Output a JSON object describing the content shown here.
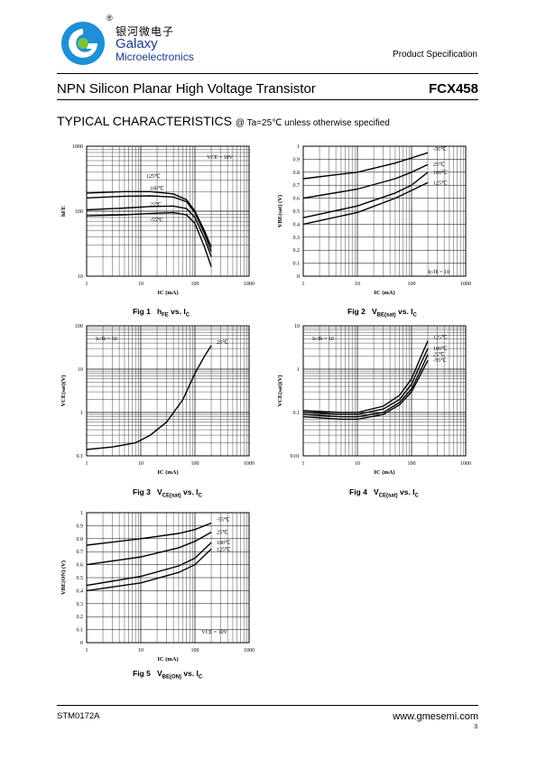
{
  "header": {
    "brand_cn": "银河微电子",
    "brand_reg": "®",
    "brand_en_line1": "Galaxy",
    "brand_en_line2": "Microelectronics",
    "product_spec": "Product Specification",
    "logo_colors": {
      "blue": "#1f8fd6",
      "green": "#7ac143"
    }
  },
  "title": {
    "description": "NPN Silicon Planar High Voltage Transistor",
    "part_number": "FCX458"
  },
  "section": {
    "heading": "TYPICAL CHARACTERISTICS",
    "condition": "@ Ta=25℃ unless otherwise specified"
  },
  "footer": {
    "doc_code": "STM0172A",
    "url": "www.gmesemi.com",
    "page": "3"
  },
  "chart_data": [
    {
      "id": "fig1",
      "type": "line",
      "caption": {
        "fig": "Fig 1",
        "text_a": "h",
        "sub_a": "FE",
        "text_b": " vs. I",
        "sub_b": "C"
      },
      "xscale": "log",
      "yscale": "log",
      "xlim": [
        1,
        1000
      ],
      "ylim": [
        10,
        1000
      ],
      "xticks": [
        "1",
        "10",
        "100",
        "1000"
      ],
      "yticks": [
        "10",
        "100",
        "1000"
      ],
      "xlabel": "IC (mA)",
      "ylabel": "hFE",
      "annotation": "VCE = 10V",
      "grid": true,
      "series": [
        {
          "name": "125℃",
          "x": [
            1,
            5,
            15,
            40,
            70,
            100,
            150,
            200
          ],
          "y": [
            190,
            200,
            200,
            185,
            150,
            100,
            50,
            28
          ]
        },
        {
          "name": "100℃",
          "x": [
            1,
            5,
            15,
            40,
            70,
            100,
            150,
            200
          ],
          "y": [
            160,
            170,
            172,
            165,
            140,
            95,
            45,
            24
          ]
        },
        {
          "name": "25℃",
          "x": [
            1,
            5,
            15,
            40,
            70,
            100,
            150,
            200
          ],
          "y": [
            105,
            112,
            118,
            120,
            110,
            80,
            38,
            20
          ]
        },
        {
          "name": "-55℃",
          "x": [
            1,
            5,
            15,
            40,
            70,
            100,
            150,
            200
          ],
          "y": [
            85,
            88,
            92,
            95,
            88,
            65,
            28,
            14
          ]
        }
      ]
    },
    {
      "id": "fig2",
      "type": "line",
      "caption": {
        "fig": "Fig 2",
        "text_a": "V",
        "sub_a": "BE(sat)",
        "text_b": " vs. I",
        "sub_b": "C"
      },
      "xscale": "log",
      "yscale": "linear",
      "xlim": [
        1,
        1000
      ],
      "ylim": [
        0,
        1
      ],
      "xticks": [
        "1",
        "10",
        "100",
        "1000"
      ],
      "yticks": [
        "0",
        "0.1",
        "0.2",
        "0.3",
        "0.4",
        "0.5",
        "0.6",
        "0.7",
        "0.8",
        "0.9",
        "1"
      ],
      "xlabel": "IC (mA)",
      "ylabel": "VBE(sat) (V)",
      "annotation": "Ic/Ib = 10",
      "grid": true,
      "series": [
        {
          "name": "-55℃",
          "x": [
            1,
            10,
            50,
            100,
            200
          ],
          "y": [
            0.75,
            0.8,
            0.87,
            0.91,
            0.95
          ]
        },
        {
          "name": "25℃",
          "x": [
            1,
            10,
            50,
            100,
            200
          ],
          "y": [
            0.6,
            0.67,
            0.75,
            0.8,
            0.86
          ]
        },
        {
          "name": "100℃",
          "x": [
            1,
            10,
            50,
            100,
            200
          ],
          "y": [
            0.45,
            0.54,
            0.64,
            0.7,
            0.8
          ]
        },
        {
          "name": "125℃",
          "x": [
            1,
            10,
            50,
            100,
            200
          ],
          "y": [
            0.4,
            0.49,
            0.6,
            0.66,
            0.72
          ]
        }
      ]
    },
    {
      "id": "fig3",
      "type": "line",
      "caption": {
        "fig": "Fig 3",
        "text_a": "V",
        "sub_a": "CE(sat)",
        "text_b": " vs. I",
        "sub_b": "C"
      },
      "xscale": "log",
      "yscale": "log",
      "xlim": [
        1,
        1000
      ],
      "ylim": [
        0.1,
        100
      ],
      "xticks": [
        "1",
        "10",
        "100",
        "1000"
      ],
      "yticks": [
        "0.1",
        "1",
        "10",
        "100"
      ],
      "xlabel": "IC (mA)",
      "ylabel": "VCE(sat)(V)",
      "annotation": "Ic/Ib = 50",
      "grid": true,
      "series": [
        {
          "name": "25℃",
          "x": [
            1,
            3,
            8,
            15,
            30,
            60,
            100,
            150,
            200
          ],
          "y": [
            0.14,
            0.16,
            0.2,
            0.3,
            0.6,
            2,
            8,
            20,
            35
          ]
        }
      ]
    },
    {
      "id": "fig4",
      "type": "line",
      "caption": {
        "fig": "Fig 4",
        "text_a": "V",
        "sub_a": "CE(sat)",
        "text_b": " vs. I",
        "sub_b": "C"
      },
      "xscale": "log",
      "yscale": "log",
      "xlim": [
        1,
        1000
      ],
      "ylim": [
        0.01,
        10
      ],
      "xticks": [
        "1",
        "10",
        "100",
        "1000"
      ],
      "yticks": [
        "0.01",
        "0.1",
        "1",
        "10"
      ],
      "xlabel": "IC (mA)",
      "ylabel": "VCE(sat)(V)",
      "annotation": "Ic/Ib = 10",
      "grid": true,
      "series": [
        {
          "name": "125℃",
          "x": [
            1,
            5,
            10,
            30,
            60,
            100,
            150,
            200
          ],
          "y": [
            0.11,
            0.1,
            0.1,
            0.14,
            0.25,
            0.6,
            2,
            4.5
          ]
        },
        {
          "name": "100℃",
          "x": [
            1,
            5,
            10,
            30,
            60,
            100,
            150,
            200
          ],
          "y": [
            0.1,
            0.09,
            0.09,
            0.12,
            0.2,
            0.45,
            1.4,
            3
          ]
        },
        {
          "name": "25℃",
          "x": [
            1,
            5,
            10,
            30,
            60,
            100,
            150,
            200
          ],
          "y": [
            0.09,
            0.08,
            0.08,
            0.1,
            0.17,
            0.35,
            1.0,
            2.2
          ]
        },
        {
          "name": "-55℃",
          "x": [
            1,
            5,
            10,
            30,
            60,
            100,
            150,
            200
          ],
          "y": [
            0.08,
            0.07,
            0.07,
            0.09,
            0.15,
            0.3,
            0.8,
            1.6
          ]
        }
      ]
    },
    {
      "id": "fig5",
      "type": "line",
      "caption": {
        "fig": "Fig 5",
        "text_a": "V",
        "sub_a": "BE(ON)",
        "text_b": " vs. I",
        "sub_b": "C"
      },
      "xscale": "log",
      "yscale": "linear",
      "xlim": [
        1,
        1000
      ],
      "ylim": [
        0,
        1
      ],
      "xticks": [
        "1",
        "10",
        "100",
        "1000"
      ],
      "yticks": [
        "0",
        "0.1",
        "0.2",
        "0.3",
        "0.4",
        "0.5",
        "0.6",
        "0.7",
        "0.8",
        "0.9",
        "1"
      ],
      "xlabel": "IC (mA)",
      "ylabel": "VBE(ON) (V)",
      "annotation": "VCE = 10V",
      "grid": true,
      "series": [
        {
          "name": "-55℃",
          "x": [
            1,
            10,
            50,
            100,
            200
          ],
          "y": [
            0.75,
            0.8,
            0.84,
            0.87,
            0.92
          ]
        },
        {
          "name": "25℃",
          "x": [
            1,
            10,
            50,
            100,
            200
          ],
          "y": [
            0.6,
            0.66,
            0.73,
            0.78,
            0.85
          ]
        },
        {
          "name": "100℃",
          "x": [
            1,
            10,
            50,
            100,
            200
          ],
          "y": [
            0.44,
            0.51,
            0.59,
            0.65,
            0.77
          ]
        },
        {
          "name": "125℃",
          "x": [
            1,
            10,
            50,
            100,
            200
          ],
          "y": [
            0.4,
            0.46,
            0.54,
            0.6,
            0.72
          ]
        }
      ]
    }
  ]
}
